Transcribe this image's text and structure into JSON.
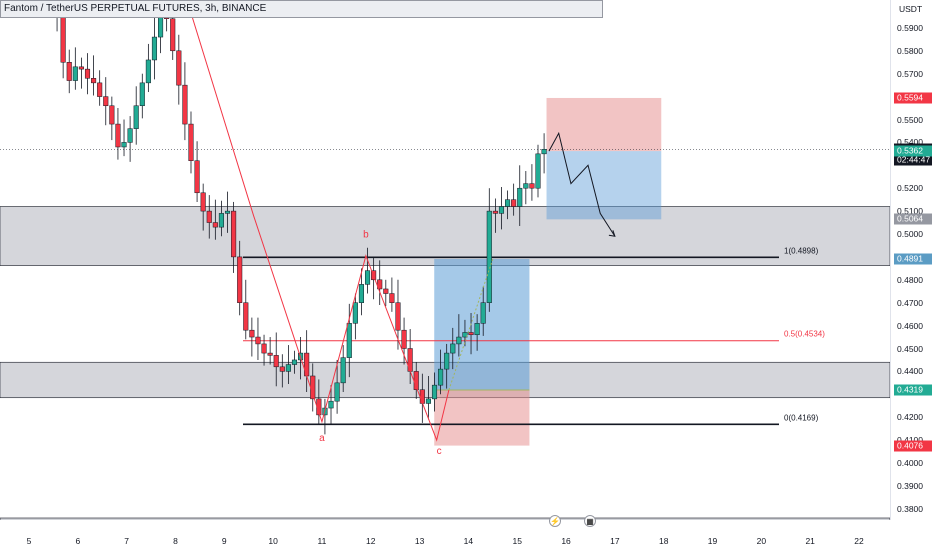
{
  "title": "Fantom / TetherUS PERPETUAL FUTURES, 3h, BINANCE",
  "currency": "USDT",
  "price_ticks": [
    "0.5900",
    "0.5800",
    "0.5700",
    "0.5500",
    "0.5400",
    "0.5200",
    "0.5100",
    "0.5000",
    "0.4800",
    "0.4700",
    "0.4600",
    "0.4500",
    "0.4400",
    "0.4200",
    "0.4100",
    "0.4000",
    "0.3900",
    "0.3800"
  ],
  "price_tick_values": [
    0.59,
    0.58,
    0.57,
    0.55,
    0.54,
    0.52,
    0.51,
    0.5,
    0.48,
    0.47,
    0.46,
    0.45,
    0.44,
    0.42,
    0.41,
    0.4,
    0.39,
    0.38
  ],
  "time_ticks": [
    "5",
    "6",
    "7",
    "8",
    "9",
    "10",
    "11",
    "12",
    "13",
    "14",
    "15",
    "16",
    "17",
    "18",
    "19",
    "20",
    "21",
    "22"
  ],
  "price_labels": [
    {
      "text": "0.5594",
      "value": 0.5594,
      "color": "#f23645"
    },
    {
      "text": "0.5369",
      "value": 0.5369,
      "color": "#131722",
      "sub": "02:44:47"
    },
    {
      "text": "0.5362",
      "value": 0.5362,
      "color": "#22ab94"
    },
    {
      "text": "0.5064",
      "value": 0.5064,
      "color": "#9598a1"
    },
    {
      "text": "0.4891",
      "value": 0.4891,
      "color": "#5b9cc4"
    },
    {
      "text": "0.4319",
      "value": 0.4319,
      "color": "#22ab94"
    },
    {
      "text": "0.4076",
      "value": 0.4076,
      "color": "#f23645"
    }
  ],
  "fib_levels": [
    {
      "text": "1(0.4898)",
      "value": 0.4898,
      "color": "#131722"
    },
    {
      "text": "0.5(0.4534)",
      "value": 0.4534,
      "color": "#f23645"
    },
    {
      "text": "0(0.4169)",
      "value": 0.4169,
      "color": "#131722"
    }
  ],
  "wave_labels": [
    {
      "text": "a",
      "day": 11.0,
      "value": 0.4095
    },
    {
      "text": "b",
      "day": 11.9,
      "value": 0.4985
    },
    {
      "text": "c",
      "day": 13.4,
      "value": 0.404
    }
  ],
  "colors": {
    "up": "#22ab94",
    "down": "#f23645",
    "zone": "#b2b5be"
  }
}
